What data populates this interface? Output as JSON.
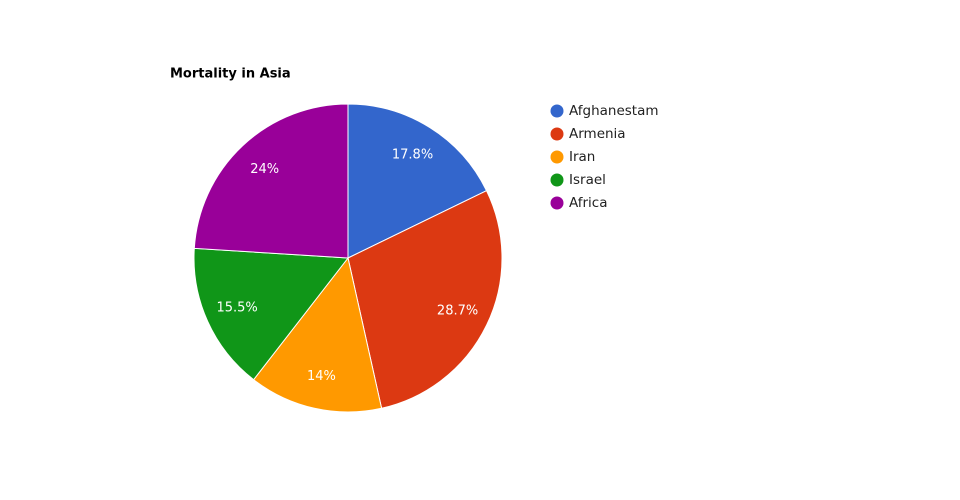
{
  "chart_data": {
    "type": "pie",
    "title": "Mortality in Asia",
    "categories": [
      "Afghanestam",
      "Armenia",
      "Iran",
      "Israel",
      "Africa"
    ],
    "values": [
      17.8,
      28.7,
      14,
      15.5,
      24
    ],
    "value_labels": [
      "17.8%",
      "28.7%",
      "14%",
      "15.5%",
      "24%"
    ],
    "colors": [
      "#3366cc",
      "#dc3912",
      "#ff9900",
      "#109618",
      "#990099"
    ],
    "legend": "right"
  }
}
